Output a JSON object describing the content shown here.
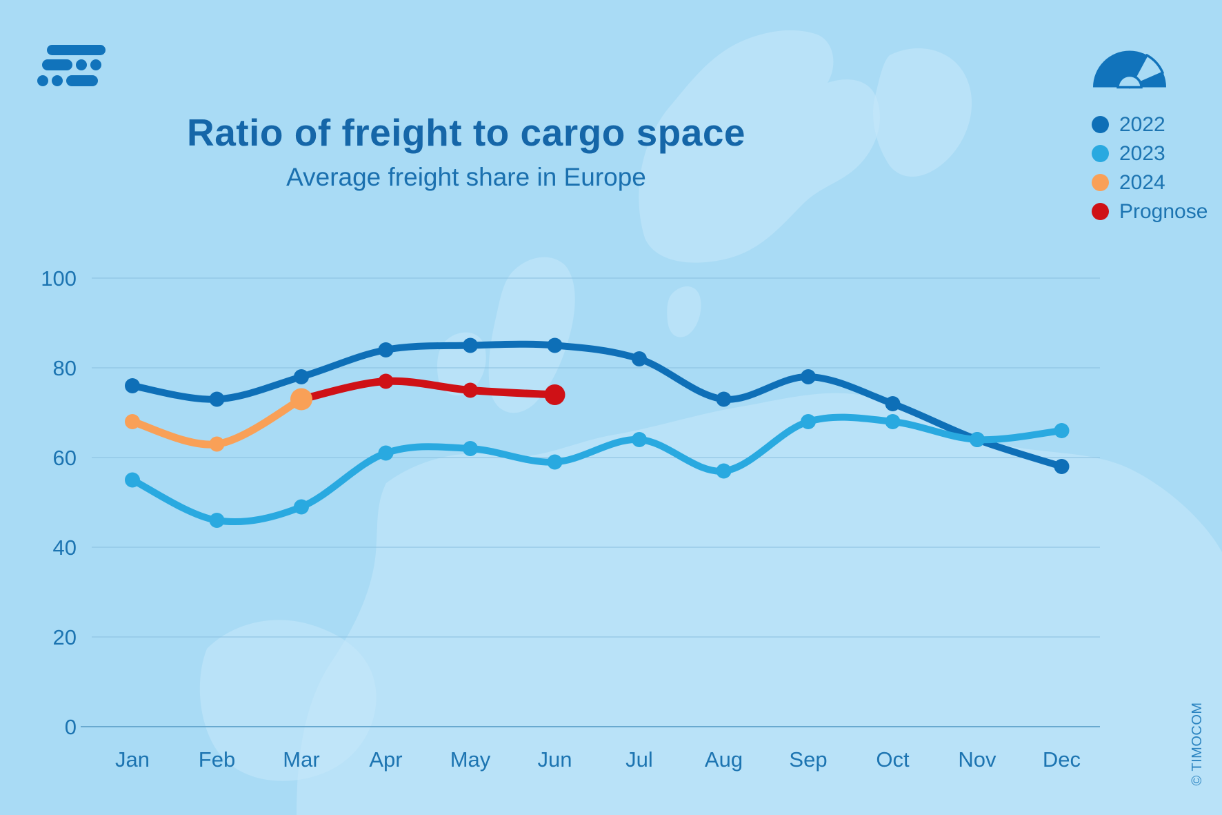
{
  "header": {
    "title": "Ratio of freight to cargo space",
    "subtitle": "Average freight share in Europe"
  },
  "legend": {
    "position": "right",
    "items": [
      {
        "label": "2022",
        "color": "#0E6FB7"
      },
      {
        "label": "2023",
        "color": "#29A9E0"
      },
      {
        "label": "2024",
        "color": "#F9A057"
      },
      {
        "label": "Prognose",
        "color": "#CF1116"
      }
    ]
  },
  "icons": {
    "logo": "timocom-logo",
    "gauge": "barometer-gauge-icon"
  },
  "colors": {
    "background": "#A9DBF5",
    "map_land": "#C6E7FA",
    "title_text": "#1566A8",
    "axis_text": "#1C74B1",
    "gridline": "#8CC2E0",
    "series_2022": "#0E6FB7",
    "series_2023": "#29A9E0",
    "series_2024": "#F9A057",
    "series_prognose": "#CF1116"
  },
  "footer": {
    "watermark": "© TIMOCOM"
  },
  "chart_data": {
    "type": "line",
    "title": "Ratio of freight to cargo space",
    "subtitle": "Average freight share in Europe",
    "xlabel": "",
    "ylabel": "",
    "ylim": [
      0,
      100
    ],
    "yticks": [
      0,
      20,
      40,
      60,
      80,
      100
    ],
    "grid": true,
    "legend_position": "right",
    "categories": [
      "Jan",
      "Feb",
      "Mar",
      "Apr",
      "May",
      "Jun",
      "Jul",
      "Aug",
      "Sep",
      "Oct",
      "Nov",
      "Dec"
    ],
    "series": [
      {
        "name": "2022",
        "color": "#0E6FB7",
        "values": [
          76,
          73,
          78,
          84,
          85,
          85,
          82,
          73,
          78,
          72,
          64,
          58
        ]
      },
      {
        "name": "2023",
        "color": "#29A9E0",
        "values": [
          55,
          46,
          49,
          61,
          62,
          59,
          64,
          57,
          68,
          68,
          64,
          66
        ]
      },
      {
        "name": "Prognose",
        "color": "#CF1116",
        "values": [
          null,
          null,
          73,
          77,
          75,
          74,
          null,
          null,
          null,
          null,
          null,
          null
        ]
      },
      {
        "name": "2024",
        "color": "#F9A057",
        "values": [
          68,
          63,
          73,
          null,
          null,
          null,
          null,
          null,
          null,
          null,
          null,
          null
        ]
      }
    ]
  }
}
